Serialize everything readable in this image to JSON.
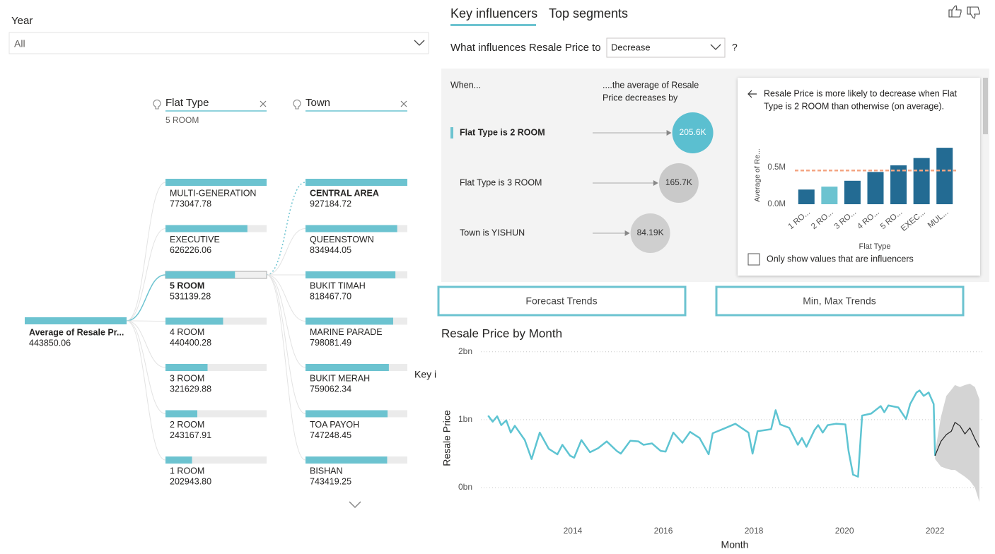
{
  "slicer": {
    "label": "Year",
    "value": "All"
  },
  "decomposition_tree": {
    "root": {
      "label": "Average of Resale Pr...",
      "value": 443850.06
    },
    "levels": [
      {
        "field": "Flat Type",
        "selected": "5 ROOM",
        "categories": [
          "MULTI-GENERATION",
          "EXECUTIVE",
          "5 ROOM",
          "4 ROOM",
          "3 ROOM",
          "2 ROOM",
          "1 ROOM"
        ],
        "values": [
          773047.78,
          626226.06,
          531139.28,
          440400.28,
          321629.88,
          243167.91,
          202943.8
        ],
        "value_labels": [
          "773047.78",
          "626226.06",
          "531139.28",
          "440400.28",
          "321629.88",
          "243167.91",
          "202943.80"
        ]
      },
      {
        "field": "Town",
        "categories": [
          "CENTRAL AREA",
          "QUEENSTOWN",
          "BUKIT TIMAH",
          "MARINE PARADE",
          "BUKIT MERAH",
          "TOA PAYOH",
          "BISHAN"
        ],
        "values": [
          927184.72,
          834944.05,
          818467.7,
          798081.49,
          759062.34,
          747248.45,
          743419.25
        ],
        "value_labels": [
          "927184.72",
          "834944.05",
          "818467.70",
          "798081.49",
          "759062.34",
          "747248.45",
          "743419.25"
        ]
      }
    ]
  },
  "key_influencers": {
    "tabs": [
      "Key influencers",
      "Top segments"
    ],
    "question": "What influences Resale Price to",
    "dropdown": "Decrease",
    "help": "?",
    "when_header": "When...",
    "effect_header": [
      "....the average of Resale",
      "Price decreases by"
    ],
    "influencers": {
      "categories": [
        "Flat Type is 2 ROOM",
        "Flat Type is 3 ROOM",
        "Town is YISHUN"
      ],
      "values": [
        205600,
        165700,
        84190
      ],
      "value_labels": [
        "205.6K",
        "165.7K",
        "84.19K"
      ],
      "colors": [
        "#5bbfd0",
        "#c9c9c9",
        "#cfcfcf"
      ]
    },
    "detail": {
      "text": [
        "Resale Price is more likely to decrease when Flat",
        "Type is 2 ROOM than otherwise (on average)."
      ],
      "checkbox": "Only show values that are influencers"
    }
  },
  "buttons": [
    "Forecast Trends",
    "Min, Max Trends"
  ],
  "overlay_text": "Key i",
  "chart_data": [
    {
      "type": "bar",
      "x_label": "Flat Type",
      "y_label": "Average of Re...",
      "categories": [
        "1 RO...",
        "2 RO...",
        "3 RO...",
        "4 RO...",
        "5 RO...",
        "EXEC...",
        "MUL..."
      ],
      "values": [
        0.2,
        0.24,
        0.32,
        0.44,
        0.53,
        0.63,
        0.77
      ],
      "colors": [
        "#236b93",
        "#6cc3d0",
        "#236b93",
        "#236b93",
        "#236b93",
        "#236b93",
        "#236b93"
      ],
      "reference_line": 0.46,
      "reference_color": "#f4a582",
      "ylim": [
        0,
        0.8
      ],
      "yticks": [
        {
          "value": 0,
          "label": "0.0M"
        },
        {
          "value": 0.5,
          "label": "0.5M"
        }
      ]
    },
    {
      "type": "line",
      "title": "Resale Price by Month",
      "x_label": "Month",
      "y_label": "Resale Price",
      "xlim": [
        2011.97,
        2023.09
      ],
      "ylim": [
        -0.26,
        2.05
      ],
      "xticks": [
        2014,
        2016,
        2018,
        2020,
        2022
      ],
      "yticks": [
        {
          "value": 0,
          "label": "0bn"
        },
        {
          "value": 1,
          "label": "1bn"
        },
        {
          "value": 2,
          "label": "2bn"
        }
      ],
      "grid": true,
      "series": [
        {
          "color": "#5ec4d2",
          "x": [
            2012.13,
            2012.23,
            2012.33,
            2012.42,
            2012.53,
            2012.63,
            2012.72,
            2012.94,
            2013.09,
            2013.27,
            2013.47,
            2013.66,
            2013.77,
            2013.94,
            2014.03,
            2014.19,
            2014.38,
            2014.56,
            2014.75,
            2014.97,
            2015.06,
            2015.27,
            2015.45,
            2015.56,
            2015.75,
            2015.94,
            2016.05,
            2016.22,
            2016.42,
            2016.59,
            2016.8,
            2017.0,
            2017.09,
            2017.38,
            2017.59,
            2017.88,
            2017.97,
            2018.08,
            2018.38,
            2018.48,
            2018.58,
            2018.78,
            2018.97,
            2019.06,
            2019.16,
            2019.34,
            2019.42,
            2019.52,
            2019.63,
            2019.81,
            2020.02,
            2020.09,
            2020.19,
            2020.3,
            2020.39,
            2020.59,
            2020.8,
            2020.88,
            2020.97,
            2021.19,
            2021.36,
            2021.45,
            2021.59,
            2021.66,
            2021.75,
            2021.86,
            2021.97,
            2022.0
          ],
          "values": [
            1.06,
            0.97,
            1.05,
            0.92,
            0.99,
            0.81,
            0.91,
            0.7,
            0.42,
            0.81,
            0.57,
            0.49,
            0.63,
            0.47,
            0.44,
            0.7,
            0.52,
            0.58,
            0.68,
            0.54,
            0.5,
            0.69,
            0.68,
            0.63,
            0.65,
            0.54,
            0.53,
            0.81,
            0.66,
            0.82,
            0.73,
            0.49,
            0.8,
            0.88,
            0.94,
            0.81,
            0.5,
            0.83,
            0.86,
            1.14,
            0.93,
            0.88,
            0.63,
            0.73,
            0.6,
            0.85,
            0.92,
            0.81,
            0.92,
            0.94,
            0.93,
            0.54,
            0.19,
            0.16,
            1.06,
            1.09,
            1.2,
            1.11,
            1.21,
            1.18,
            1.01,
            1.23,
            1.4,
            1.43,
            1.35,
            1.4,
            1.23,
            0.47
          ]
        },
        {
          "color": "#222222",
          "x": [
            2022.0,
            2022.13,
            2022.25,
            2022.36,
            2022.44,
            2022.55,
            2022.66,
            2022.77,
            2022.88,
            2022.98
          ],
          "values": [
            0.47,
            0.68,
            0.78,
            0.83,
            0.96,
            0.91,
            0.79,
            0.88,
            0.72,
            0.59
          ]
        }
      ],
      "band": {
        "color": "#d4d4d4",
        "x": [
          2022.0,
          2022.13,
          2022.25,
          2022.36,
          2022.44,
          2022.55,
          2022.66,
          2022.77,
          2022.88,
          2022.98
        ],
        "upper": [
          0.52,
          1.04,
          1.35,
          1.44,
          1.51,
          1.48,
          1.51,
          1.53,
          1.48,
          1.3
        ],
        "lower": [
          0.42,
          0.31,
          0.28,
          0.26,
          0.26,
          0.21,
          0.16,
          0.1,
          0.0,
          -0.21
        ]
      }
    }
  ]
}
